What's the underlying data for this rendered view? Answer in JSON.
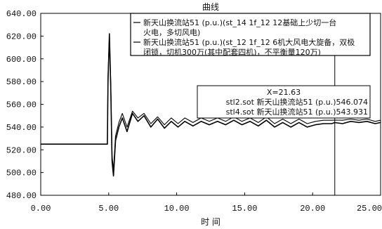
{
  "chart_data": {
    "type": "line",
    "title": "曲线",
    "xlabel": "时 间",
    "ylabel": "",
    "xlim": [
      0,
      25
    ],
    "ylim": [
      480,
      640
    ],
    "x_ticks": [
      "0.00",
      "5.00",
      "10.00",
      "15.00",
      "20.00",
      "25.00"
    ],
    "y_ticks": [
      "480.00",
      "500.00",
      "520.00",
      "540.00",
      "560.00",
      "580.00",
      "600.00",
      "620.00",
      "640.00"
    ],
    "grid": false,
    "legend_position": "top-right",
    "series": [
      {
        "name": "新天山换流站51 (p.u.)(st_14 1f_12 12基础上少切一台火电，多切风电)",
        "color": "#000000",
        "points": [
          [
            0,
            525
          ],
          [
            4.9,
            525
          ],
          [
            4.95,
            580
          ],
          [
            5.05,
            622
          ],
          [
            5.15,
            575
          ],
          [
            5.25,
            510
          ],
          [
            5.35,
            497
          ],
          [
            5.5,
            528
          ],
          [
            5.75,
            540
          ],
          [
            6.0,
            548
          ],
          [
            6.35,
            536
          ],
          [
            6.75,
            552
          ],
          [
            7.15,
            545
          ],
          [
            7.6,
            550
          ],
          [
            8.1,
            540
          ],
          [
            8.6,
            547
          ],
          [
            9.1,
            539
          ],
          [
            9.6,
            545
          ],
          [
            10.1,
            540
          ],
          [
            10.6,
            545
          ],
          [
            11.2,
            541
          ],
          [
            11.8,
            545
          ],
          [
            12.4,
            542
          ],
          [
            13.0,
            545
          ],
          [
            13.6,
            542
          ],
          [
            14.2,
            546
          ],
          [
            14.8,
            542
          ],
          [
            15.4,
            545
          ],
          [
            16.0,
            541
          ],
          [
            16.6,
            546
          ],
          [
            17.2,
            540
          ],
          [
            17.8,
            544
          ],
          [
            18.4,
            540
          ],
          [
            19.0,
            544
          ],
          [
            19.6,
            540
          ],
          [
            20.2,
            542
          ],
          [
            20.8,
            543
          ],
          [
            21.4,
            543
          ],
          [
            21.63,
            543.931
          ],
          [
            22.2,
            543
          ],
          [
            22.8,
            545
          ],
          [
            23.4,
            544
          ],
          [
            24.0,
            545
          ],
          [
            24.6,
            543
          ],
          [
            25.0,
            544
          ]
        ]
      },
      {
        "name": "新天山换流站51 (p.u.)(st_12 1f_12 6机大风电大旋备，双极闭锁，切机300万(其中配套四机)，不平衡量120万)",
        "color": "#000000",
        "points": [
          [
            0,
            525
          ],
          [
            4.9,
            525
          ],
          [
            4.95,
            585
          ],
          [
            5.05,
            620
          ],
          [
            5.15,
            580
          ],
          [
            5.25,
            515
          ],
          [
            5.35,
            502
          ],
          [
            5.5,
            532
          ],
          [
            5.75,
            544
          ],
          [
            6.0,
            552
          ],
          [
            6.35,
            540
          ],
          [
            6.75,
            554
          ],
          [
            7.15,
            548
          ],
          [
            7.6,
            552
          ],
          [
            8.1,
            543
          ],
          [
            8.6,
            549
          ],
          [
            9.1,
            542
          ],
          [
            9.6,
            548
          ],
          [
            10.1,
            543
          ],
          [
            10.6,
            548
          ],
          [
            11.2,
            544
          ],
          [
            11.8,
            548
          ],
          [
            12.4,
            545
          ],
          [
            13.0,
            548
          ],
          [
            13.6,
            545
          ],
          [
            14.2,
            549
          ],
          [
            14.8,
            545
          ],
          [
            15.4,
            548
          ],
          [
            16.0,
            544
          ],
          [
            16.6,
            549
          ],
          [
            17.2,
            543
          ],
          [
            17.8,
            547
          ],
          [
            18.4,
            543
          ],
          [
            19.0,
            547
          ],
          [
            19.6,
            543
          ],
          [
            20.2,
            545
          ],
          [
            20.8,
            546
          ],
          [
            21.4,
            546
          ],
          [
            21.63,
            546.074
          ],
          [
            22.2,
            546
          ],
          [
            22.8,
            547
          ],
          [
            23.4,
            546
          ],
          [
            24.0,
            547
          ],
          [
            24.6,
            545
          ],
          [
            25.0,
            546
          ]
        ]
      }
    ],
    "cursor": {
      "x": 21.63,
      "label": "X=21.63",
      "readouts": [
        {
          "text": "stl2.sot 新天山换流站51 (p.u.)546.074"
        },
        {
          "text": "stl4.sot 新天山换流站51 (p.u.)543.931"
        }
      ]
    }
  }
}
